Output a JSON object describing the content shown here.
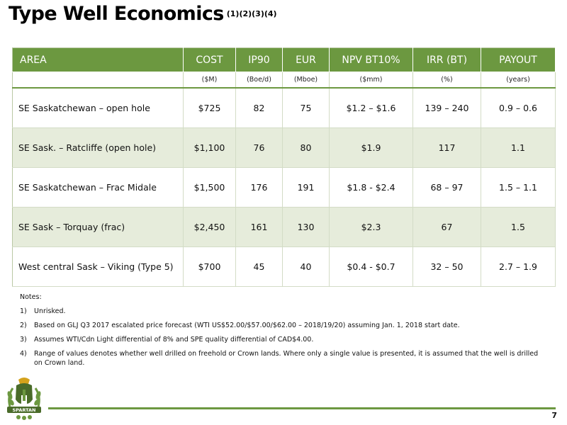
{
  "page": {
    "title": "Type Well Economics",
    "title_superscript": "(1)(2)(3)(4)",
    "page_number": "7"
  },
  "table": {
    "headers": [
      "AREA",
      "COST",
      "IP90",
      "EUR",
      "NPV BT10%",
      "IRR (BT)",
      "PAYOUT"
    ],
    "units": [
      "",
      "($M)",
      "(Boe/d)",
      "(Mboe)",
      "($mm)",
      "(%)",
      "(years)"
    ],
    "rows": [
      [
        "SE Saskatchewan – open hole",
        "$725",
        "82",
        "75",
        "$1.2 – $1.6",
        "139 – 240",
        "0.9 – 0.6"
      ],
      [
        "SE Sask. – Ratcliffe (open hole)",
        "$1,100",
        "76",
        "80",
        "$1.9",
        "117",
        "1.1"
      ],
      [
        "SE Saskatchewan – Frac Midale",
        "$1,500",
        "176",
        "191",
        "$1.8 - $2.4",
        "68 – 97",
        "1.5 – 1.1"
      ],
      [
        "SE Sask – Torquay (frac)",
        "$2,450",
        "161",
        "130",
        "$2.3",
        "67",
        "1.5"
      ],
      [
        "West central Sask – Viking (Type 5)",
        "$700",
        "45",
        "40",
        "$0.4 - $0.7",
        "32 – 50",
        "2.7 – 1.9"
      ]
    ]
  },
  "notes": {
    "title": "Notes:",
    "items": [
      {
        "num": "1)",
        "text": "Unrisked."
      },
      {
        "num": "2)",
        "text": "Based on GLJ Q3 2017 escalated price forecast (WTI US$52.00/$57.00/$62.00 – 2018/19/20) assuming Jan. 1, 2018 start date."
      },
      {
        "num": "3)",
        "text": "Assumes WTI/Cdn Light differential of 8% and SPE quality differential of CAD$4.00."
      },
      {
        "num": "4)",
        "text": "Range of values denotes whether well drilled on freehold or Crown lands.  Where only a single value is presented, it is assumed that the well is drilled on Crown land."
      }
    ]
  },
  "logo": {
    "text": "SPARTAN",
    "colors": {
      "primary": "#6c9840",
      "dark": "#4a6b2a",
      "gold": "#d4a21c"
    }
  }
}
